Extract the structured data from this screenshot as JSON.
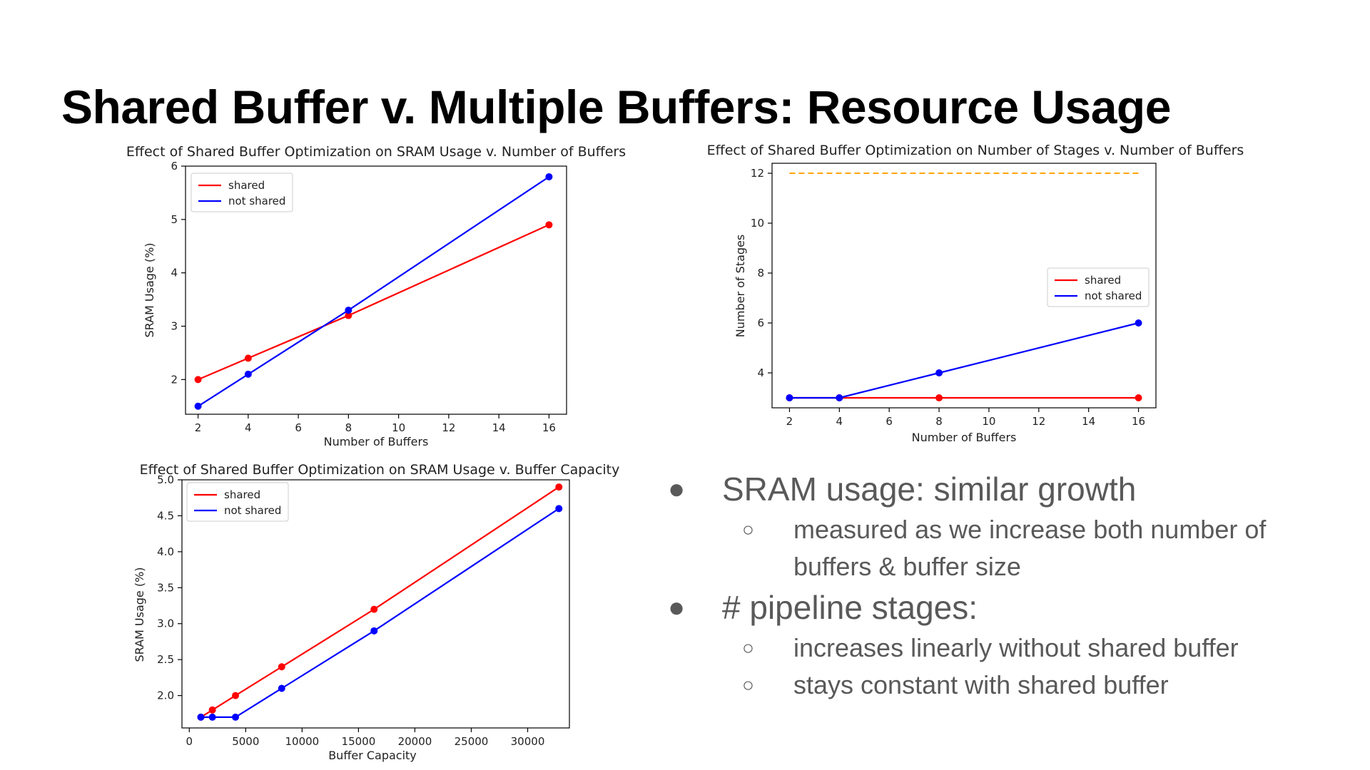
{
  "slide": {
    "title": "Shared Buffer v. Multiple Buffers: Resource Usage"
  },
  "bullets": [
    {
      "text": "SRAM usage: similar growth",
      "sub": [
        "measured as we increase both number of buffers & buffer size"
      ]
    },
    {
      "text": "# pipeline stages:",
      "sub": [
        "increases linearly without shared buffer",
        "stays constant with shared buffer"
      ]
    }
  ],
  "colors": {
    "shared": "#ff0000",
    "not_shared": "#0000ff",
    "reference": "#ffa500",
    "text_gray": "#595959"
  },
  "chart_data": [
    {
      "type": "line",
      "title": "Effect of Shared Buffer Optimization on SRAM Usage v. Number of Buffers",
      "xlabel": "Number of Buffers",
      "ylabel": "SRAM Usage (%)",
      "xlim": [
        1.5,
        16.7
      ],
      "ylim": [
        1.35,
        6.0
      ],
      "xticks": [
        2,
        4,
        6,
        8,
        10,
        12,
        14,
        16
      ],
      "yticks": [
        2,
        3,
        4,
        5,
        6
      ],
      "legend_position": "upper-left",
      "series": [
        {
          "name": "shared",
          "color": "#ff0000",
          "x": [
            2,
            4,
            8,
            16
          ],
          "y": [
            2.0,
            2.4,
            3.2,
            4.9
          ]
        },
        {
          "name": "not shared",
          "color": "#0000ff",
          "x": [
            2,
            4,
            8,
            16
          ],
          "y": [
            1.5,
            2.1,
            3.3,
            5.8
          ]
        }
      ]
    },
    {
      "type": "line",
      "title": "Effect of Shared Buffer Optimization on Number of Stages v. Number of Buffers",
      "xlabel": "Number of Buffers",
      "ylabel": "Number of Stages",
      "xlim": [
        1.3,
        16.7
      ],
      "ylim": [
        2.6,
        12.4
      ],
      "xticks": [
        2,
        4,
        6,
        8,
        10,
        12,
        14,
        16
      ],
      "yticks": [
        4,
        6,
        8,
        10,
        12
      ],
      "legend_position": "center-right",
      "reference_line": {
        "y": 12,
        "x_from": 2,
        "x_to": 16,
        "style": "dashed",
        "color": "#ffa500"
      },
      "series": [
        {
          "name": "shared",
          "color": "#ff0000",
          "x": [
            2,
            4,
            8,
            16
          ],
          "y": [
            3,
            3,
            3,
            3
          ]
        },
        {
          "name": "not shared",
          "color": "#0000ff",
          "x": [
            2,
            4,
            8,
            16
          ],
          "y": [
            3,
            3,
            4,
            6
          ]
        }
      ]
    },
    {
      "type": "line",
      "title": "Effect of Shared Buffer Optimization on SRAM Usage v. Buffer Capacity",
      "xlabel": "Buffer Capacity",
      "ylabel": "SRAM Usage (%)",
      "xlim": [
        -650,
        33700
      ],
      "ylim": [
        1.55,
        5.0
      ],
      "xticks": [
        0,
        5000,
        10000,
        15000,
        20000,
        25000,
        30000
      ],
      "yticks": [
        2.0,
        2.5,
        3.0,
        3.5,
        4.0,
        4.5,
        5.0
      ],
      "ytick_decimals": 1,
      "legend_position": "upper-left",
      "series": [
        {
          "name": "shared",
          "color": "#ff0000",
          "x": [
            1024,
            2048,
            4096,
            8192,
            16384,
            32768
          ],
          "y": [
            1.7,
            1.8,
            2.0,
            2.4,
            3.2,
            4.9
          ]
        },
        {
          "name": "not shared",
          "color": "#0000ff",
          "x": [
            1024,
            2048,
            4096,
            8192,
            16384,
            32768
          ],
          "y": [
            1.7,
            1.7,
            1.7,
            2.1,
            2.9,
            4.6
          ]
        }
      ]
    }
  ]
}
